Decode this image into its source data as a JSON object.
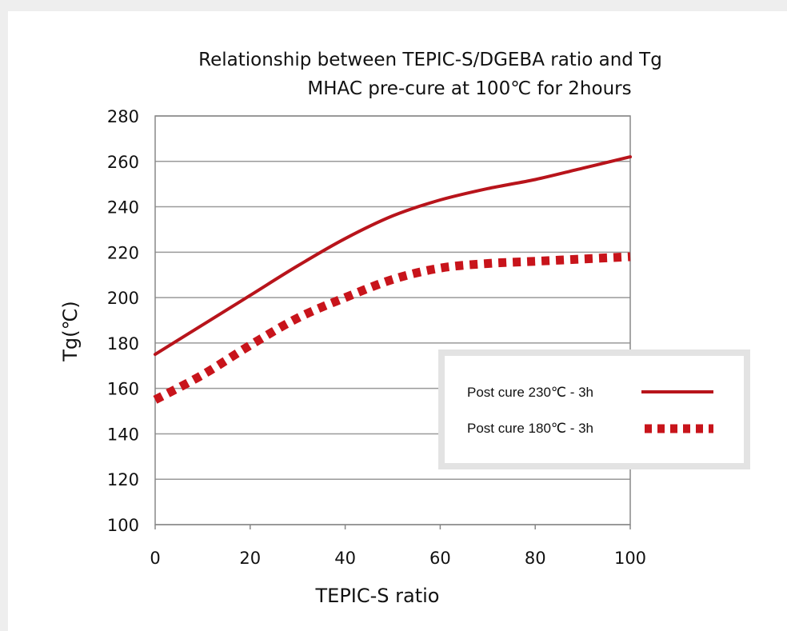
{
  "chart_data": {
    "type": "line",
    "title": "Relationship between TEPIC-S/DGEBA ratio and Tg",
    "subtitle": "MHAC pre-cure at 100℃ for 2hours",
    "xlabel": "TEPIC-S ratio",
    "ylabel": "Tg(℃)",
    "xlim": [
      0,
      100
    ],
    "ylim": [
      100,
      280
    ],
    "xticks": [
      0,
      20,
      40,
      60,
      80,
      100
    ],
    "yticks": [
      100,
      120,
      140,
      160,
      180,
      200,
      220,
      240,
      260,
      280
    ],
    "grid": "horizontal",
    "legend_position": "center-right",
    "x": [
      0,
      10,
      20,
      30,
      40,
      50,
      60,
      70,
      80,
      90,
      100
    ],
    "series": [
      {
        "name": "Post cure 230℃ - 3h",
        "style": "solid",
        "color": "#b8141b",
        "values": [
          175,
          188,
          201,
          214,
          226,
          236,
          243,
          248,
          252,
          257,
          262
        ]
      },
      {
        "name": "Post cure 180℃ - 3h",
        "style": "dotted",
        "color": "#c8141b",
        "values": [
          155,
          166,
          179,
          191,
          200,
          208,
          213,
          215,
          216,
          217,
          218
        ]
      }
    ]
  }
}
